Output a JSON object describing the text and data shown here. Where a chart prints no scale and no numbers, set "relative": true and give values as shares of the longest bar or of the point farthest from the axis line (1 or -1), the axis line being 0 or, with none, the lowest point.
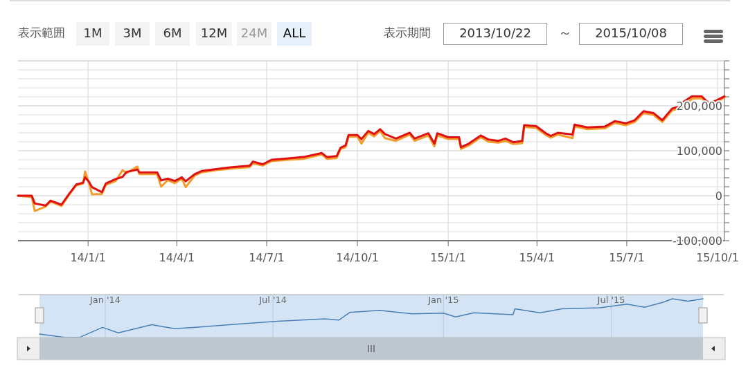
{
  "chart_data": [
    {
      "type": "line",
      "annotations": [
        "表示範囲",
        "1M",
        "3M",
        "6M",
        "12M",
        "24M",
        "ALL",
        "表示期間",
        "2013/10/22",
        "～",
        "2015/10/08"
      ],
      "xlim": [
        "2013-10-22",
        "2015-10-08"
      ],
      "xticks": [
        {
          "value": "2014-01-01",
          "label": "14/1/1"
        },
        {
          "value": "2014-04-01",
          "label": "14/4/1"
        },
        {
          "value": "2014-07-01",
          "label": "14/7/1"
        },
        {
          "value": "2014-10-01",
          "label": "14/10/1"
        },
        {
          "value": "2015-01-01",
          "label": "15/1/1"
        },
        {
          "value": "2015-04-01",
          "label": "15/4/1"
        },
        {
          "value": "2015-07-01",
          "label": "15/7/1"
        },
        {
          "value": "2015-10-01",
          "label": "15/10/1"
        }
      ],
      "ylim": [
        -100000,
        300000
      ],
      "yticks": [
        {
          "value": -100000,
          "label": "-100,000"
        },
        {
          "value": -80000,
          "label": null
        },
        {
          "value": -60000,
          "label": null
        },
        {
          "value": -40000,
          "label": null
        },
        {
          "value": -20000,
          "label": null
        },
        {
          "value": 0,
          "label": "0"
        },
        {
          "value": 20000,
          "label": null
        },
        {
          "value": 40000,
          "label": null
        },
        {
          "value": 60000,
          "label": null
        },
        {
          "value": 80000,
          "label": null
        },
        {
          "value": 100000,
          "label": "100,000"
        },
        {
          "value": 120000,
          "label": null
        },
        {
          "value": 140000,
          "label": null
        },
        {
          "value": 160000,
          "label": null
        },
        {
          "value": 180000,
          "label": null
        },
        {
          "value": 200000,
          "label": "200,000"
        },
        {
          "value": 220000,
          "label": null
        },
        {
          "value": 240000,
          "label": null
        },
        {
          "value": 260000,
          "label": null
        },
        {
          "value": 280000,
          "label": null
        },
        {
          "value": 300000,
          "label": null
        }
      ],
      "grid": true,
      "series": [
        {
          "color": "#f39c2a",
          "x": [
            "2013-10-22",
            "2013-11-05",
            "2013-11-08",
            "2013-11-19",
            "2013-11-24",
            "2013-12-05",
            "2013-12-13",
            "2013-12-20",
            "2013-12-27",
            "2013-12-29",
            "2014-01-02",
            "2014-01-05",
            "2014-01-15",
            "2014-01-19",
            "2014-01-29",
            "2014-02-05",
            "2014-02-09",
            "2014-02-20",
            "2014-02-22",
            "2014-03-12",
            "2014-03-16",
            "2014-03-23",
            "2014-03-30",
            "2014-04-06",
            "2014-04-10",
            "2014-04-19",
            "2014-04-26",
            "2014-05-11",
            "2014-05-25",
            "2014-06-14",
            "2014-06-17",
            "2014-06-27",
            "2014-07-06",
            "2014-07-23",
            "2014-08-07",
            "2014-08-26",
            "2014-08-31",
            "2014-09-10",
            "2014-09-14",
            "2014-09-19",
            "2014-09-22",
            "2014-10-01",
            "2014-10-05",
            "2014-10-12",
            "2014-10-18",
            "2014-10-24",
            "2014-10-29",
            "2014-11-09",
            "2014-11-23",
            "2014-11-28",
            "2014-12-12",
            "2014-12-18",
            "2014-12-21",
            "2015-01-01",
            "2015-01-12",
            "2015-01-14",
            "2015-01-22",
            "2015-02-03",
            "2015-02-11",
            "2015-02-21",
            "2015-02-28",
            "2015-03-08",
            "2015-03-17",
            "2015-03-19",
            "2015-03-31",
            "2015-04-10",
            "2015-04-15",
            "2015-04-22",
            "2015-05-07",
            "2015-05-09",
            "2015-05-22",
            "2015-06-09",
            "2015-06-19",
            "2015-06-30",
            "2015-07-09",
            "2015-07-18",
            "2015-07-28",
            "2015-08-06",
            "2015-08-16",
            "2015-08-26",
            "2015-08-27",
            "2015-09-05",
            "2015-09-15",
            "2015-09-22",
            "2015-09-30",
            "2015-10-08"
          ],
          "values": [
            0,
            -3000,
            -34000,
            -24000,
            -13000,
            -23000,
            3000,
            23000,
            27000,
            54000,
            27000,
            3000,
            4000,
            24000,
            33000,
            57000,
            50000,
            65000,
            48000,
            48000,
            20000,
            35000,
            28000,
            38000,
            19000,
            45000,
            52000,
            57000,
            60000,
            64000,
            72000,
            67000,
            77000,
            80000,
            82000,
            92000,
            82000,
            84000,
            104000,
            108000,
            131000,
            131000,
            116000,
            140000,
            132000,
            144000,
            128000,
            122000,
            136000,
            122000,
            134000,
            110000,
            134000,
            126000,
            126000,
            104000,
            112000,
            130000,
            120000,
            118000,
            122000,
            115000,
            117000,
            153000,
            151000,
            135000,
            129000,
            136000,
            128000,
            154000,
            148000,
            150000,
            162000,
            157000,
            164000,
            184000,
            180000,
            164000,
            190000,
            196000,
            196000,
            216000,
            217000,
            202000,
            208000,
            219000
          ]
        },
        {
          "color": "#e01010",
          "x": [
            "2013-10-22",
            "2013-11-05",
            "2013-11-08",
            "2013-11-19",
            "2013-11-24",
            "2013-12-05",
            "2013-12-13",
            "2013-12-20",
            "2013-12-27",
            "2013-12-29",
            "2014-01-02",
            "2014-01-05",
            "2014-01-15",
            "2014-01-19",
            "2014-01-29",
            "2014-02-05",
            "2014-02-09",
            "2014-02-20",
            "2014-02-22",
            "2014-03-12",
            "2014-03-16",
            "2014-03-23",
            "2014-03-30",
            "2014-04-06",
            "2014-04-10",
            "2014-04-19",
            "2014-04-26",
            "2014-05-11",
            "2014-05-25",
            "2014-06-14",
            "2014-06-17",
            "2014-06-27",
            "2014-07-06",
            "2014-07-23",
            "2014-08-07",
            "2014-08-26",
            "2014-08-31",
            "2014-09-10",
            "2014-09-14",
            "2014-09-19",
            "2014-09-22",
            "2014-10-01",
            "2014-10-05",
            "2014-10-12",
            "2014-10-18",
            "2014-10-24",
            "2014-10-29",
            "2014-11-09",
            "2014-11-23",
            "2014-11-28",
            "2014-12-12",
            "2014-12-18",
            "2014-12-21",
            "2015-01-01",
            "2015-01-12",
            "2015-01-14",
            "2015-01-22",
            "2015-02-03",
            "2015-02-11",
            "2015-02-21",
            "2015-02-28",
            "2015-03-08",
            "2015-03-17",
            "2015-03-19",
            "2015-03-31",
            "2015-04-10",
            "2015-04-15",
            "2015-04-22",
            "2015-05-07",
            "2015-05-09",
            "2015-05-22",
            "2015-06-09",
            "2015-06-19",
            "2015-06-30",
            "2015-07-09",
            "2015-07-18",
            "2015-07-28",
            "2015-08-06",
            "2015-08-16",
            "2015-08-26",
            "2015-08-27",
            "2015-09-05",
            "2015-09-15",
            "2015-09-22",
            "2015-09-30",
            "2015-10-08"
          ],
          "values": [
            0,
            0,
            -17000,
            -22000,
            -11000,
            -20000,
            5000,
            25000,
            29000,
            41000,
            31000,
            19000,
            8000,
            27000,
            37000,
            42000,
            53000,
            58000,
            52000,
            52000,
            34000,
            38000,
            33000,
            41000,
            32000,
            48000,
            55000,
            59000,
            63000,
            67000,
            76000,
            70000,
            80000,
            83000,
            86000,
            95000,
            86000,
            88000,
            107000,
            112000,
            135000,
            135000,
            126000,
            144000,
            137000,
            148000,
            137000,
            127000,
            140000,
            127000,
            139000,
            116000,
            139000,
            130000,
            130000,
            108000,
            116000,
            134000,
            125000,
            122000,
            127000,
            119000,
            122000,
            157000,
            155000,
            139000,
            133000,
            140000,
            136000,
            158000,
            152000,
            154000,
            166000,
            161000,
            168000,
            188000,
            184000,
            168000,
            194000,
            200000,
            208000,
            221000,
            221000,
            206000,
            212000,
            221000
          ]
        }
      ]
    },
    {
      "type": "line",
      "relative": true,
      "tick_labels": "x",
      "grid": "x",
      "xlim": [
        "2013-10-22",
        "2015-10-08"
      ],
      "xticks": [
        {
          "value": "2014-01-01",
          "label": "Jan '14"
        },
        {
          "value": "2014-07-01",
          "label": "Jul '14"
        },
        {
          "value": "2015-01-01",
          "label": "Jan '15"
        },
        {
          "value": "2015-07-01",
          "label": "Jul '15"
        }
      ],
      "series": [
        {
          "color": "#4a7fb5",
          "x": [
            "2013-10-22",
            "2013-11-19",
            "2013-12-05",
            "2013-12-29",
            "2014-01-15",
            "2014-02-20",
            "2014-03-16",
            "2014-04-06",
            "2014-05-25",
            "2014-07-06",
            "2014-08-26",
            "2014-09-10",
            "2014-09-22",
            "2014-10-24",
            "2014-11-28",
            "2015-01-01",
            "2015-01-14",
            "2015-02-03",
            "2015-03-17",
            "2015-03-19",
            "2015-04-15",
            "2015-05-09",
            "2015-06-19",
            "2015-07-18",
            "2015-08-06",
            "2015-08-26",
            "2015-09-05",
            "2015-09-22",
            "2015-10-08"
          ],
          "values": [
            0.09,
            0,
            0.01,
            0.26,
            0.12,
            0.33,
            0.23,
            0.26,
            0.35,
            0.42,
            0.48,
            0.45,
            0.65,
            0.7,
            0.61,
            0.63,
            0.53,
            0.64,
            0.59,
            0.74,
            0.64,
            0.74,
            0.77,
            0.86,
            0.78,
            0.91,
            1,
            0.94,
            1
          ]
        }
      ]
    }
  ]
}
